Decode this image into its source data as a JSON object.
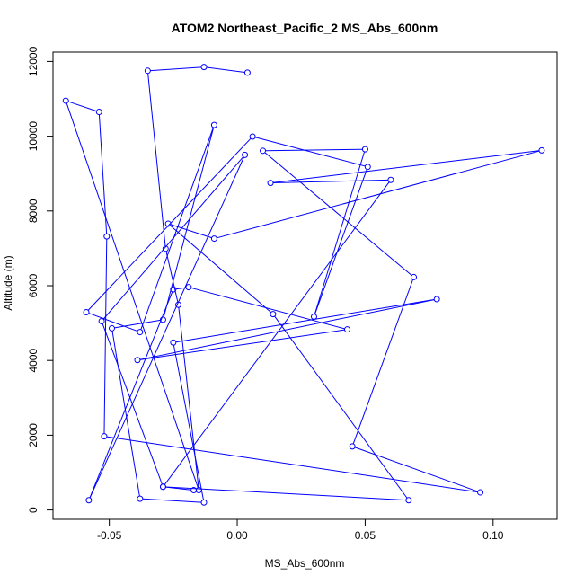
{
  "chart_data": {
    "type": "line",
    "title": "ATOM2 Northeast_Pacific_2 MS_Abs_600nm",
    "xlabel": "MS_Abs_600nm",
    "ylabel": "Altitude (m)",
    "xlim": [
      -0.072,
      0.125
    ],
    "ylim": [
      -250,
      12250
    ],
    "xticks": [
      -0.05,
      0.0,
      0.05,
      0.1
    ],
    "xtick_labels": [
      "-0.05",
      "0.00",
      "0.05",
      "0.10"
    ],
    "yticks": [
      0,
      2000,
      4000,
      6000,
      8000,
      10000,
      12000
    ],
    "ytick_labels": [
      "0",
      "2000",
      "4000",
      "6000",
      "8000",
      "10000",
      "12000"
    ],
    "series_color": "#0000ff",
    "markers": "open-circle",
    "grid": false,
    "series": [
      {
        "x": [
          0.004,
          -0.013,
          -0.035,
          -0.028,
          -0.023,
          -0.015,
          -0.067,
          -0.054,
          -0.051,
          -0.052,
          0.095,
          0.045,
          0.069,
          0.01,
          0.05,
          0.03,
          0.051,
          0.006,
          -0.059,
          -0.038,
          -0.009,
          -0.029,
          -0.049,
          -0.038,
          -0.013,
          -0.025,
          0.078,
          -0.039,
          0.043,
          -0.019,
          -0.025,
          -0.058,
          0.003,
          -0.053,
          -0.029,
          0.06,
          0.013,
          0.119,
          -0.009,
          -0.027,
          0.014,
          0.067,
          -0.029,
          -0.017
        ],
        "y": [
          11700,
          11850,
          11750,
          6990,
          5490,
          530,
          10950,
          10650,
          7320,
          1970,
          470,
          1700,
          6230,
          9610,
          9650,
          5170,
          9180,
          9990,
          5290,
          4760,
          10300,
          5090,
          4860,
          300,
          200,
          4480,
          5640,
          4010,
          4830,
          5960,
          5900,
          260,
          9500,
          5050,
          620,
          8830,
          8750,
          9620,
          7260,
          7660,
          5240,
          260,
          620,
          530
        ]
      }
    ]
  }
}
